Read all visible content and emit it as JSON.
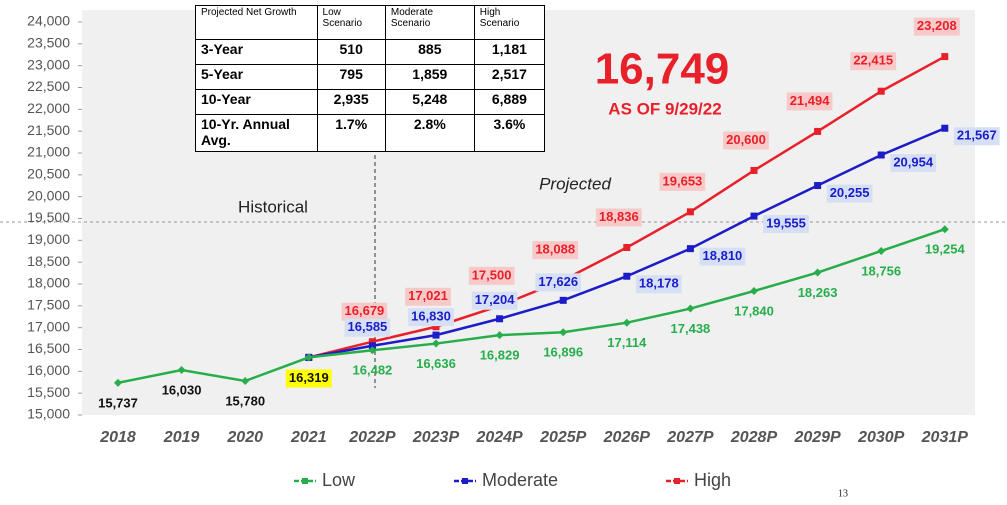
{
  "chart_data": {
    "type": "line",
    "categories": [
      "2018",
      "2019",
      "2020",
      "2021",
      "2022P",
      "2023P",
      "2024P",
      "2025P",
      "2026P",
      "2027P",
      "2028P",
      "2029P",
      "2030P",
      "2031P"
    ],
    "series": [
      {
        "name": "Low",
        "color": "#27ae4a",
        "values": [
          15737,
          16030,
          15780,
          16319,
          16482,
          16636,
          16829,
          16896,
          17114,
          17438,
          17840,
          18263,
          18756,
          19254
        ],
        "value_labels": [
          "15,737",
          "16,030",
          "15,780",
          "16,319",
          "16,482",
          "16,636",
          "16,829",
          "16,896",
          "17,114",
          "17,438",
          "17,840",
          "18,263",
          "18,756",
          "19,254"
        ]
      },
      {
        "name": "Moderate",
        "color": "#1c1cc8",
        "values": [
          null,
          null,
          null,
          16319,
          16585,
          16830,
          17204,
          17626,
          18178,
          18810,
          19555,
          20255,
          20954,
          21567
        ],
        "value_labels": [
          null,
          null,
          null,
          null,
          "16,585",
          "16,830",
          "17,204",
          "17,626",
          "18,178",
          "18,810",
          "19,555",
          "20,255",
          "20,954",
          "21,567"
        ]
      },
      {
        "name": "High",
        "color": "#e8202a",
        "values": [
          null,
          null,
          null,
          16319,
          16679,
          17021,
          17500,
          18088,
          18836,
          19653,
          20600,
          21494,
          22415,
          23208
        ],
        "value_labels": [
          null,
          null,
          null,
          null,
          "16,679",
          "17,021",
          "17,500",
          "18,088",
          "18,836",
          "19,653",
          "20,600",
          "21,494",
          "22,415",
          "23,208"
        ]
      }
    ],
    "ylim": [
      15000,
      24000
    ],
    "yticks": [
      {
        "value": 15000,
        "label": "15,000"
      },
      {
        "value": 15500,
        "label": "15,500"
      },
      {
        "value": 16000,
        "label": "16,000"
      },
      {
        "value": 16500,
        "label": "16,500"
      },
      {
        "value": 17000,
        "label": "17,000"
      },
      {
        "value": 17500,
        "label": "17,500"
      },
      {
        "value": 18000,
        "label": "18,000"
      },
      {
        "value": 18500,
        "label": "18,500"
      },
      {
        "value": 19000,
        "label": "19,000"
      },
      {
        "value": 19500,
        "label": "19,500"
      },
      {
        "value": 20000,
        "label": "20,000"
      },
      {
        "value": 20500,
        "label": "20,500"
      },
      {
        "value": 21000,
        "label": "21,000"
      },
      {
        "value": 21500,
        "label": "21,500"
      },
      {
        "value": 22000,
        "label": "22,000"
      },
      {
        "value": 22500,
        "label": "22,500"
      },
      {
        "value": 23000,
        "label": "23,000"
      },
      {
        "value": 23500,
        "label": "23,500"
      },
      {
        "value": 24000,
        "label": "24,000"
      }
    ],
    "legend": "bottom",
    "annotations": [
      "16,749",
      "AS OF 9/29/22",
      "Historical",
      "Projected",
      "13"
    ],
    "table": {
      "header": [
        "Projected Net Growth",
        "Low Scenario",
        "Moderate Scenario",
        "High Scenario"
      ],
      "rows": [
        [
          "3-Year",
          "510",
          "885",
          "1,181"
        ],
        [
          "5-Year",
          "795",
          "1,859",
          "2,517"
        ],
        [
          "10-Year",
          "2,935",
          "5,248",
          "6,889"
        ],
        [
          "10-Yr. Annual Avg.",
          "1.7%",
          "2.8%",
          "3.6%"
        ]
      ]
    }
  }
}
